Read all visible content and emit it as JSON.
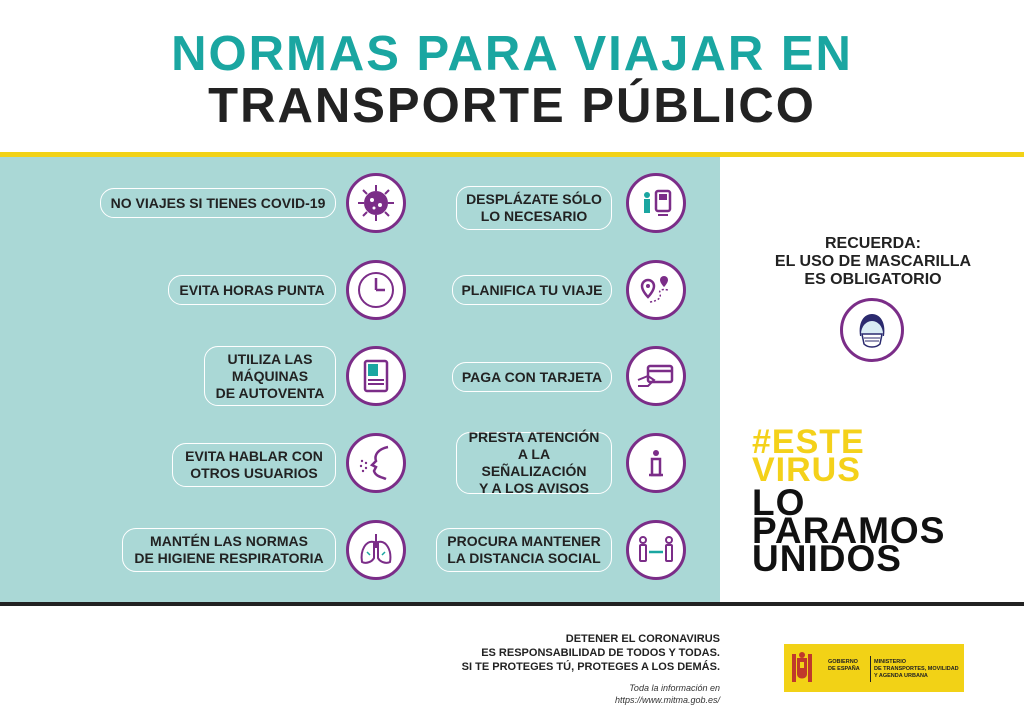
{
  "title": {
    "line1": "NORMAS PARA VIAJAR EN",
    "line2": "TRANSPORTE PÚBLICO"
  },
  "rules": [
    {
      "text": "NO VIAJES SI TIENES COVID-19",
      "icon": "virus-icon"
    },
    {
      "text": "DESPLÁZATE SÓLO\nLO NECESARIO",
      "icon": "train-station-icon"
    },
    {
      "text": "EVITA HORAS PUNTA",
      "icon": "clock-icon"
    },
    {
      "text": "PLANIFICA TU VIAJE",
      "icon": "map-route-icon"
    },
    {
      "text": "UTILIZA LAS\nMÁQUINAS\nDE AUTOVENTA",
      "icon": "ticket-machine-icon"
    },
    {
      "text": "PAGA CON TARJETA",
      "icon": "card-payment-icon"
    },
    {
      "text": "EVITA HABLAR CON\nOTROS USUARIOS",
      "icon": "speaking-face-icon"
    },
    {
      "text": "PRESTA ATENCIÓN\nA LA SEÑALIZACIÓN\nY A LOS AVISOS",
      "icon": "info-icon"
    },
    {
      "text": "MANTÉN LAS NORMAS\nDE HIGIENE RESPIRATORIA",
      "icon": "lungs-icon"
    },
    {
      "text": "PROCURA MANTENER\nLA DISTANCIA SOCIAL",
      "icon": "social-distance-icon"
    }
  ],
  "reminder": {
    "text": "RECUERDA:\nEL USO DE MASCARILLA\nES OBLIGATORIO",
    "icon": "face-mask-icon"
  },
  "slogan": {
    "line1": "#ESTE",
    "line2": "VIRUS",
    "line3": "LO",
    "line4": "PARAMOS",
    "line5": "UNIDOS"
  },
  "footer": {
    "message": "DETENER EL CORONAVIRUS\nES RESPONSABILIDAD DE TODOS Y TODAS.\nSI TE PROTEGES TÚ, PROTEGES A LOS DEMÁS.",
    "info": "Toda la información en\nhttps://www.mitma.gob.es/"
  },
  "government": {
    "line1": "GOBIERNO\nDE ESPAÑA",
    "line2": "MINISTERIO\nDE TRANSPORTES, MOVILIDAD\nY AGENDA URBANA"
  },
  "colors": {
    "teal": "#1aa6a1",
    "panel": "#aad8d6",
    "purple": "#7b2d88",
    "yellow": "#f2d216"
  }
}
